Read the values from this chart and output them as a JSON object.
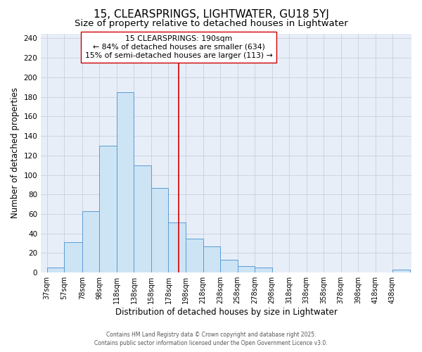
{
  "title": "15, CLEARSPRINGS, LIGHTWATER, GU18 5YJ",
  "subtitle": "Size of property relative to detached houses in Lightwater",
  "xlabel": "Distribution of detached houses by size in Lightwater",
  "ylabel": "Number of detached properties",
  "bar_left_edges": [
    37,
    57,
    78,
    98,
    118,
    138,
    158,
    178,
    198,
    218,
    238,
    258,
    278,
    298,
    318,
    338,
    358,
    378,
    398,
    418,
    438
  ],
  "bar_widths": [
    20,
    21,
    20,
    20,
    20,
    20,
    20,
    20,
    20,
    20,
    20,
    20,
    20,
    20,
    20,
    20,
    20,
    20,
    20,
    20,
    20
  ],
  "bar_heights": [
    5,
    31,
    63,
    130,
    185,
    110,
    87,
    51,
    35,
    27,
    13,
    7,
    5,
    0,
    0,
    0,
    0,
    0,
    0,
    0,
    3
  ],
  "bar_facecolor": "#cde4f5",
  "bar_edgecolor": "#5b9bd5",
  "grid_color": "#c8d0dc",
  "bg_color": "#e8eef8",
  "vline_x": 190,
  "vline_color": "#cc0000",
  "annotation_text": "15 CLEARSPRINGS: 190sqm\n← 84% of detached houses are smaller (634)\n15% of semi-detached houses are larger (113) →",
  "annotation_box_edgecolor": "#cc0000",
  "annotation_box_facecolor": "#ffffff",
  "xlim_left": 30,
  "xlim_right": 460,
  "ylim_top": 245,
  "yticks": [
    0,
    20,
    40,
    60,
    80,
    100,
    120,
    140,
    160,
    180,
    200,
    220,
    240
  ],
  "tick_labels": [
    "37sqm",
    "57sqm",
    "78sqm",
    "98sqm",
    "118sqm",
    "138sqm",
    "158sqm",
    "178sqm",
    "198sqm",
    "218sqm",
    "238sqm",
    "258sqm",
    "278sqm",
    "298sqm",
    "318sqm",
    "338sqm",
    "358sqm",
    "378sqm",
    "398sqm",
    "418sqm",
    "438sqm"
  ],
  "tick_positions": [
    37,
    57,
    78,
    98,
    118,
    138,
    158,
    178,
    198,
    218,
    238,
    258,
    278,
    298,
    318,
    338,
    358,
    378,
    398,
    418,
    438
  ],
  "footer_text": "Contains HM Land Registry data © Crown copyright and database right 2025.\nContains public sector information licensed under the Open Government Licence v3.0.",
  "title_fontsize": 11,
  "subtitle_fontsize": 9.5,
  "ylabel_fontsize": 8.5,
  "xlabel_fontsize": 8.5,
  "tick_fontsize": 7,
  "ytick_fontsize": 7.5,
  "annotation_fontsize": 7.8,
  "footer_fontsize": 5.5
}
